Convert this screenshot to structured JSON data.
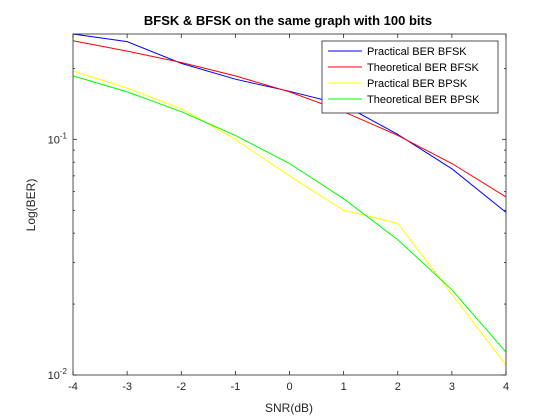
{
  "chart_data": {
    "type": "line",
    "title": "BFSK & BFSK on the same graph with 100 bits",
    "xlabel": "SNR(dB)",
    "ylabel": "Log(BER)",
    "yscale": "log",
    "xlim": [
      -4,
      4
    ],
    "ylim": [
      0.01,
      0.28
    ],
    "grid": false,
    "legend_position": "top-right",
    "x": [
      -4,
      -3,
      -2,
      -1,
      0,
      1,
      2,
      3,
      4
    ],
    "x_ticks": [
      "-4",
      "-3",
      "-2",
      "-1",
      "0",
      "1",
      "2",
      "3",
      "4"
    ],
    "y_ticks": [
      {
        "value": 0.1,
        "base": "10",
        "exp": "-1"
      },
      {
        "value": 0.01,
        "base": "10",
        "exp": "-2"
      }
    ],
    "series": [
      {
        "name": "Practical BER BFSK",
        "color": "#0000ff",
        "x": [
          -4,
          -3,
          -2,
          -1,
          0,
          1,
          2,
          3,
          4
        ],
        "values": [
          0.28,
          0.26,
          0.21,
          0.18,
          0.16,
          0.14,
          0.105,
          0.075,
          0.049
        ]
      },
      {
        "name": "Theoretical BER BFSK",
        "color": "#ff0000",
        "x": [
          -4,
          -3,
          -2,
          -1,
          0,
          1,
          2,
          3,
          4
        ],
        "values": [
          0.262,
          0.237,
          0.212,
          0.186,
          0.159,
          0.131,
          0.104,
          0.079,
          0.057
        ]
      },
      {
        "name": "Practical BER BPSK",
        "color": "#ffff00",
        "x": [
          -4,
          -3,
          -2,
          -1,
          0,
          1,
          1.5,
          2,
          3,
          4
        ],
        "values": [
          0.195,
          0.165,
          0.135,
          0.1,
          0.07,
          0.05,
          0.047,
          0.044,
          0.022,
          0.011
        ]
      },
      {
        "name": "Theoretical BER BPSK",
        "color": "#00ff00",
        "x": [
          -4,
          -3,
          -2,
          -1,
          0,
          1,
          2,
          3,
          4
        ],
        "values": [
          0.186,
          0.159,
          0.131,
          0.104,
          0.079,
          0.056,
          0.0375,
          0.023,
          0.0125
        ]
      }
    ]
  }
}
